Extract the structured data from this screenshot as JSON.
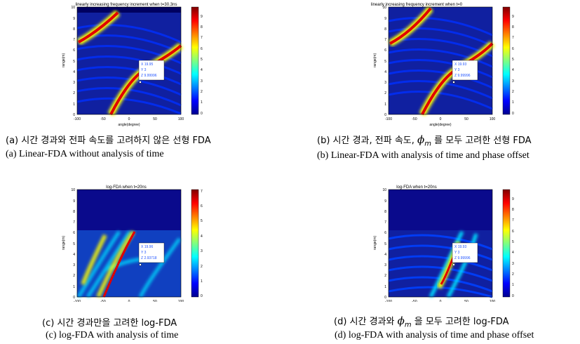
{
  "colors": {
    "background_high": "#0a0a8c",
    "accent_yellow": "#ffff00",
    "accent_red": "#c80000",
    "datatip_text": "#2255ff"
  },
  "axes": {
    "xlabel": "angle(degree)",
    "ylabel": "range(m)",
    "xticks": [
      "-100",
      "-50",
      "0",
      "50",
      "100"
    ],
    "yticks": [
      "0",
      "1",
      "2",
      "3",
      "4",
      "5",
      "6",
      "7",
      "8",
      "9",
      "10"
    ]
  },
  "panels": [
    {
      "title": "linearly increasing frequency increment when t=30.3ns",
      "cb_ticks": [
        "0",
        "1",
        "2",
        "3",
        "4",
        "5",
        "6",
        "7",
        "8",
        "9"
      ],
      "tip": {
        "x": "X 19.95",
        "y": "Y 3",
        "z": "Z 9.99996"
      },
      "caption_ko": "(a) 시간 경과와 전파 속도를 고려하지 않은 선형 FDA",
      "caption_en": "(a) Linear-FDA without analysis of time"
    },
    {
      "title": "linearly increasing frequency increment when t=0",
      "cb_ticks": [
        "0",
        "1",
        "2",
        "3",
        "4",
        "5",
        "6",
        "7",
        "8",
        "9"
      ],
      "tip": {
        "x": "X 19.93",
        "y": "Y 3",
        "z": "Z 9.99996"
      },
      "caption_ko_pre": "(b) 시간 경과, 전파 속도,",
      "caption_ko_sym": "ϕ",
      "caption_ko_sub": "m",
      "caption_ko_post": "를 모두 고려한 선형 FDA",
      "caption_en": "(b) Linear-FDA with analysis of time and phase offset"
    },
    {
      "title": "log-FDA when t=20ns",
      "cb_ticks": [
        "0",
        "1",
        "2",
        "3",
        "4",
        "5",
        "6",
        "7"
      ],
      "tip": {
        "x": "X 19.96",
        "y": "Y 3",
        "z": "Z 2.93718"
      },
      "caption_ko": "(c) 시간 경과만을 고려한 log-FDA",
      "caption_en": "(c) log-FDA with analysis of time"
    },
    {
      "title": "log-FDA when t=20ns",
      "cb_ticks": [
        "0",
        "1",
        "2",
        "3",
        "4",
        "5",
        "6",
        "7",
        "8",
        "9"
      ],
      "tip": {
        "x": "X 19.93",
        "y": "Y 3",
        "z": "Z 9.99996"
      },
      "caption_ko_pre": "(d) 시간 경과와",
      "caption_ko_sym": "ϕ",
      "caption_ko_sub": "m",
      "caption_ko_post": "을 모두 고려한 log-FDA",
      "caption_en": "(d) log-FDA with analysis of time and phase offset"
    }
  ]
}
